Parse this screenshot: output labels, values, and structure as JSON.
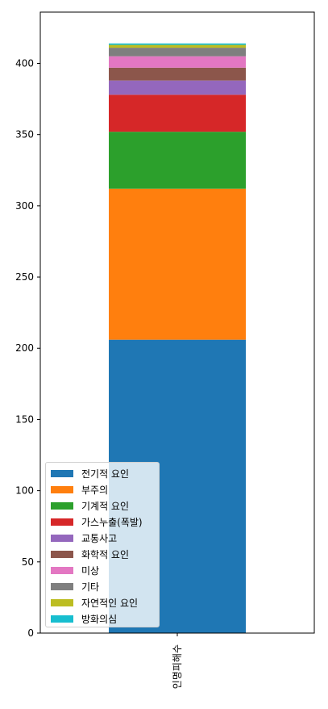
{
  "chart_data": {
    "type": "bar",
    "stacked": true,
    "categories": [
      "인명피해수"
    ],
    "series": [
      {
        "name": "전기적 요인",
        "values": [
          206
        ],
        "color": "#1f77b4"
      },
      {
        "name": "부주의",
        "values": [
          106
        ],
        "color": "#ff7f0e"
      },
      {
        "name": "기계적 요인",
        "values": [
          40
        ],
        "color": "#2ca02c"
      },
      {
        "name": "가스누출(폭발)",
        "values": [
          26
        ],
        "color": "#d62728"
      },
      {
        "name": "교통사고",
        "values": [
          10
        ],
        "color": "#9467bd"
      },
      {
        "name": "화학적 요인",
        "values": [
          9
        ],
        "color": "#8c564b"
      },
      {
        "name": "미상",
        "values": [
          8
        ],
        "color": "#e377c2"
      },
      {
        "name": "기타",
        "values": [
          6
        ],
        "color": "#7f7f7f"
      },
      {
        "name": "자연적인 요인",
        "values": [
          2
        ],
        "color": "#bcbd22"
      },
      {
        "name": "방화의심",
        "values": [
          1
        ],
        "color": "#17becf"
      }
    ],
    "yticks": [
      0,
      50,
      100,
      150,
      200,
      250,
      300,
      350,
      400
    ],
    "ylim": [
      0,
      436
    ],
    "xlabel": "",
    "ylabel": "",
    "title": "",
    "grid": false,
    "legend_position": "lower-left"
  }
}
